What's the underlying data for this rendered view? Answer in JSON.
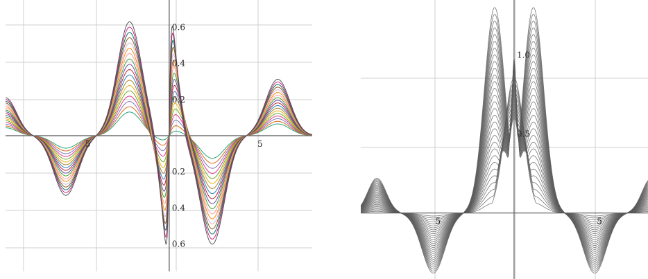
{
  "chart_data": [
    {
      "type": "line",
      "title": "",
      "xlabel": "",
      "ylabel": "",
      "xlim": [
        -9.5,
        8.3
      ],
      "ylim": [
        -0.72,
        0.72
      ],
      "grid": true,
      "x_ticks": [
        -5,
        5
      ],
      "x_tick_labels": [
        "5",
        "5"
      ],
      "y_ticks": [
        0.6,
        0.4,
        0.2,
        -0.2,
        -0.4,
        -0.6
      ],
      "y_tick_labels": [
        "0.6",
        "0.4",
        "0.2",
        "0.2",
        "0.4",
        "0.6"
      ],
      "curve_family": {
        "count": 18,
        "parameter_range": [
          0.05,
          1.0
        ]
      },
      "envelope": {
        "x": [
          -9.5,
          -9,
          -7,
          -6,
          -5,
          -3,
          -2,
          -1.5,
          -1,
          -0.5,
          0,
          0.5,
          1,
          1.5,
          2,
          3,
          5,
          6,
          7,
          8.3
        ],
        "max": [
          0.21,
          0.18,
          -0.02,
          -0.28,
          0.0,
          0.5,
          0.65,
          0.3,
          -0.3,
          -0.7,
          0.72,
          0.6,
          0.2,
          -0.05,
          -0.2,
          -0.6,
          0.0,
          0.3,
          0.15,
          -0.05
        ]
      },
      "colors": [
        "#1b9e77",
        "#d95f02",
        "#7570b3",
        "#e7298a",
        "#66a61e",
        "#e6ab02",
        "#a6761d",
        "#1f78b4",
        "#b2182b",
        "#6a3d9a",
        "#33a02c",
        "#fb9a99",
        "#ff7f00",
        "#cab2d6",
        "#8c510a",
        "#01665e",
        "#c51b7d",
        "#4d4d4d"
      ]
    },
    {
      "type": "line",
      "title": "",
      "xlabel": "",
      "ylabel": "",
      "xlim": [
        -9.5,
        8.3
      ],
      "ylim": [
        -0.4,
        1.33
      ],
      "grid": true,
      "x_ticks": [
        -5,
        5
      ],
      "x_tick_labels": [
        "5",
        "5"
      ],
      "y_ticks": [
        1.0,
        0.5
      ],
      "y_tick_labels": [
        "1.0",
        "0.5"
      ],
      "curve_family": {
        "count": 30,
        "parameter_range": [
          0.05,
          1.0
        ]
      },
      "envelope": {
        "x": [
          -9.5,
          -8.5,
          -7,
          -5,
          -3,
          -1.2,
          0,
          1.2,
          3,
          5,
          7,
          8.3
        ],
        "max": [
          0.0,
          0.22,
          0.0,
          -0.38,
          0.0,
          1.3,
          1.0,
          1.3,
          0.0,
          -0.38,
          0.0,
          0.22
        ]
      },
      "colors": [
        "#5a5a5a"
      ]
    }
  ]
}
